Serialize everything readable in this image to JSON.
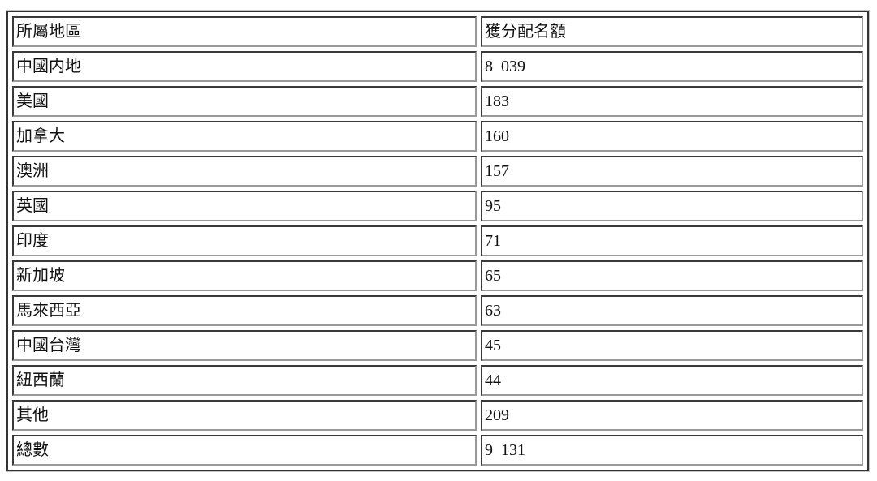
{
  "page": {
    "background": "#ffffff"
  },
  "table": {
    "header": {
      "region": "所屬地區",
      "quota": "獲分配名額"
    },
    "rows": [
      {
        "region": "中國内地",
        "quota": "8  039"
      },
      {
        "region": "美國",
        "quota": "183"
      },
      {
        "region": "加拿大",
        "quota": "160"
      },
      {
        "region": "澳洲",
        "quota": "157"
      },
      {
        "region": "英國",
        "quota": "95"
      },
      {
        "region": "印度",
        "quota": "71"
      },
      {
        "region": "新加坡",
        "quota": "65"
      },
      {
        "region": "馬來西亞",
        "quota": "63"
      },
      {
        "region": "中國台灣",
        "quota": "45"
      },
      {
        "region": "紐西蘭",
        "quota": "44"
      },
      {
        "region": "其他",
        "quota": "209"
      },
      {
        "region": "總數",
        "quota": "9  131"
      }
    ],
    "colors": {
      "border_dark": "#3a3a3a",
      "border_light": "#9a9a9a",
      "frame": "#343434",
      "text": "#111111"
    }
  }
}
